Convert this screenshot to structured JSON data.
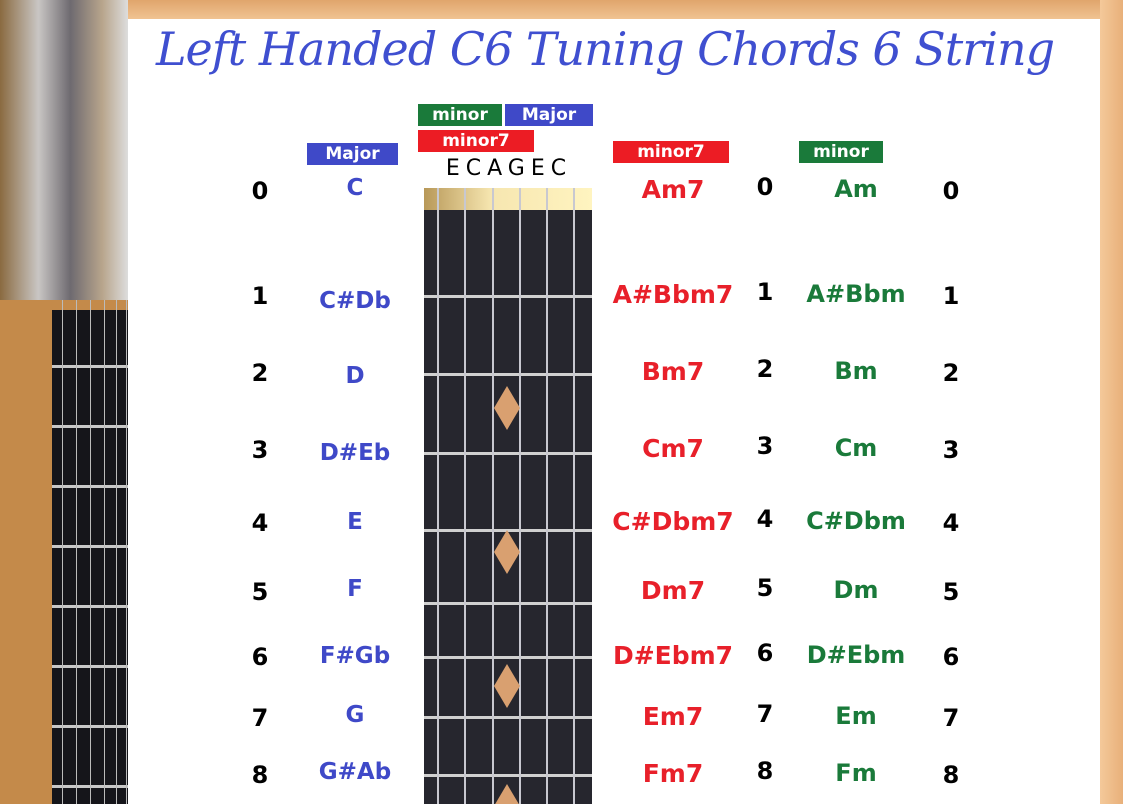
{
  "title": "Left Handed C6 Tuning Chords 6 String",
  "tags": {
    "major": "Major",
    "minor": "minor",
    "minor7": "minor7"
  },
  "strings": "ECAGEC",
  "colors": {
    "major": "#3f49c8",
    "minor": "#1a7a3a",
    "minor7": "#ec1c24",
    "title": "#3f4fd0"
  },
  "rows": [
    {
      "fret": "0",
      "major": "C",
      "minor7": "Am7",
      "minor": "Am"
    },
    {
      "fret": "1",
      "major": "C#Db",
      "minor7": "A#Bbm7",
      "minor": "A#Bbm"
    },
    {
      "fret": "2",
      "major": "D",
      "minor7": "Bm7",
      "minor": "Bm"
    },
    {
      "fret": "3",
      "major": "D#Eb",
      "minor7": "Cm7",
      "minor": "Cm"
    },
    {
      "fret": "4",
      "major": "E",
      "minor7": "C#Dbm7",
      "minor": "C#Dbm"
    },
    {
      "fret": "5",
      "major": "F",
      "minor7": "Dm7",
      "minor": "Dm"
    },
    {
      "fret": "6",
      "major": "F#Gb",
      "minor7": "D#Ebm7",
      "minor": "D#Ebm"
    },
    {
      "fret": "7",
      "major": "G",
      "minor7": "Em7",
      "minor": "Em"
    },
    {
      "fret": "8",
      "major": "G#Ab",
      "minor7": "Fm7",
      "minor": "Fm"
    }
  ]
}
